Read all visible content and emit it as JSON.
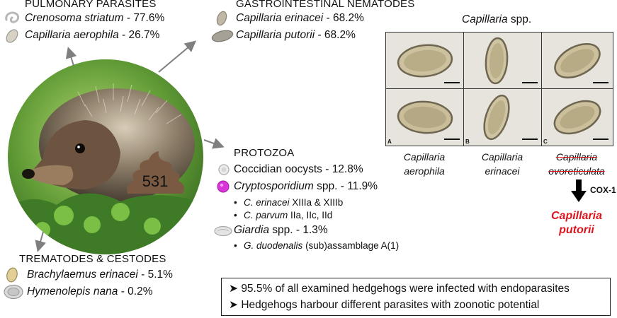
{
  "pulmonary": {
    "header": "PULMONARY PARASITES",
    "items": [
      {
        "species": "Crenosoma striatum",
        "pct": " - 77.6%",
        "icon": "larva-icon"
      },
      {
        "species": "Capillaria aerophila",
        "pct": " - 26.7%",
        "icon": "egg-icon"
      }
    ]
  },
  "gastro": {
    "header": "GASTROINTESTINAL NEMATODES",
    "items": [
      {
        "species": "Capillaria erinacei",
        "pct": " - 68.2%"
      },
      {
        "species": "Capillaria putorii",
        "pct": " - 68.2%"
      }
    ]
  },
  "protozoa": {
    "header": "PROTOZOA",
    "item1": {
      "text": "Coccidian oocysts - 12.8%"
    },
    "item2": {
      "species": "Cryptosporidium",
      "rest": " spp. - 11.9%"
    },
    "sub2a": {
      "species": "C. erinacei",
      "rest": " XIIIa & XIIIb"
    },
    "sub2b": {
      "species": "C. parvum",
      "rest": " IIa, IIc, IId"
    },
    "item3": {
      "species": "Giardia",
      "rest": " spp. - 1.3%"
    },
    "sub3a": {
      "species": "G. duodenalis",
      "rest": " (sub)assamblage A(1)"
    }
  },
  "trematodes": {
    "header": "TREMATODES & CESTODES",
    "items": [
      {
        "species": "Brachylaemus erinacei",
        "pct": " - 5.1%"
      },
      {
        "species": "Hymenolepis nana",
        "pct": " - 0.2%"
      }
    ]
  },
  "sample_count": "531",
  "capillaria": {
    "title_species": "Capillaria",
    "title_rest": " spp.",
    "panels": [
      {
        "label": "A",
        "scale": "20μm"
      },
      {
        "label": "B",
        "scale": "20μm"
      },
      {
        "label": "C",
        "scale": "20μm"
      }
    ],
    "captions": [
      {
        "line1": "Capillaria",
        "line2": "aerophila"
      },
      {
        "line1": "Capillaria",
        "line2": "erinacei"
      },
      {
        "line1": "Capillaria",
        "line2": "ovoreticulata"
      }
    ],
    "arrow_label": "COX-1",
    "result_line1": "Capillaria",
    "result_line2": "putorii",
    "result_color": "#e0141e"
  },
  "summary": {
    "line1": "95.5% of all examined hedgehogs were infected with endoparasites",
    "line2": "Hedgehogs harbour different parasites with zoonotic potential"
  },
  "colors": {
    "arrow_gray": "#7f7f7f",
    "crypto_magenta": "#d936d9",
    "poop_brown": "#7b5a44"
  }
}
